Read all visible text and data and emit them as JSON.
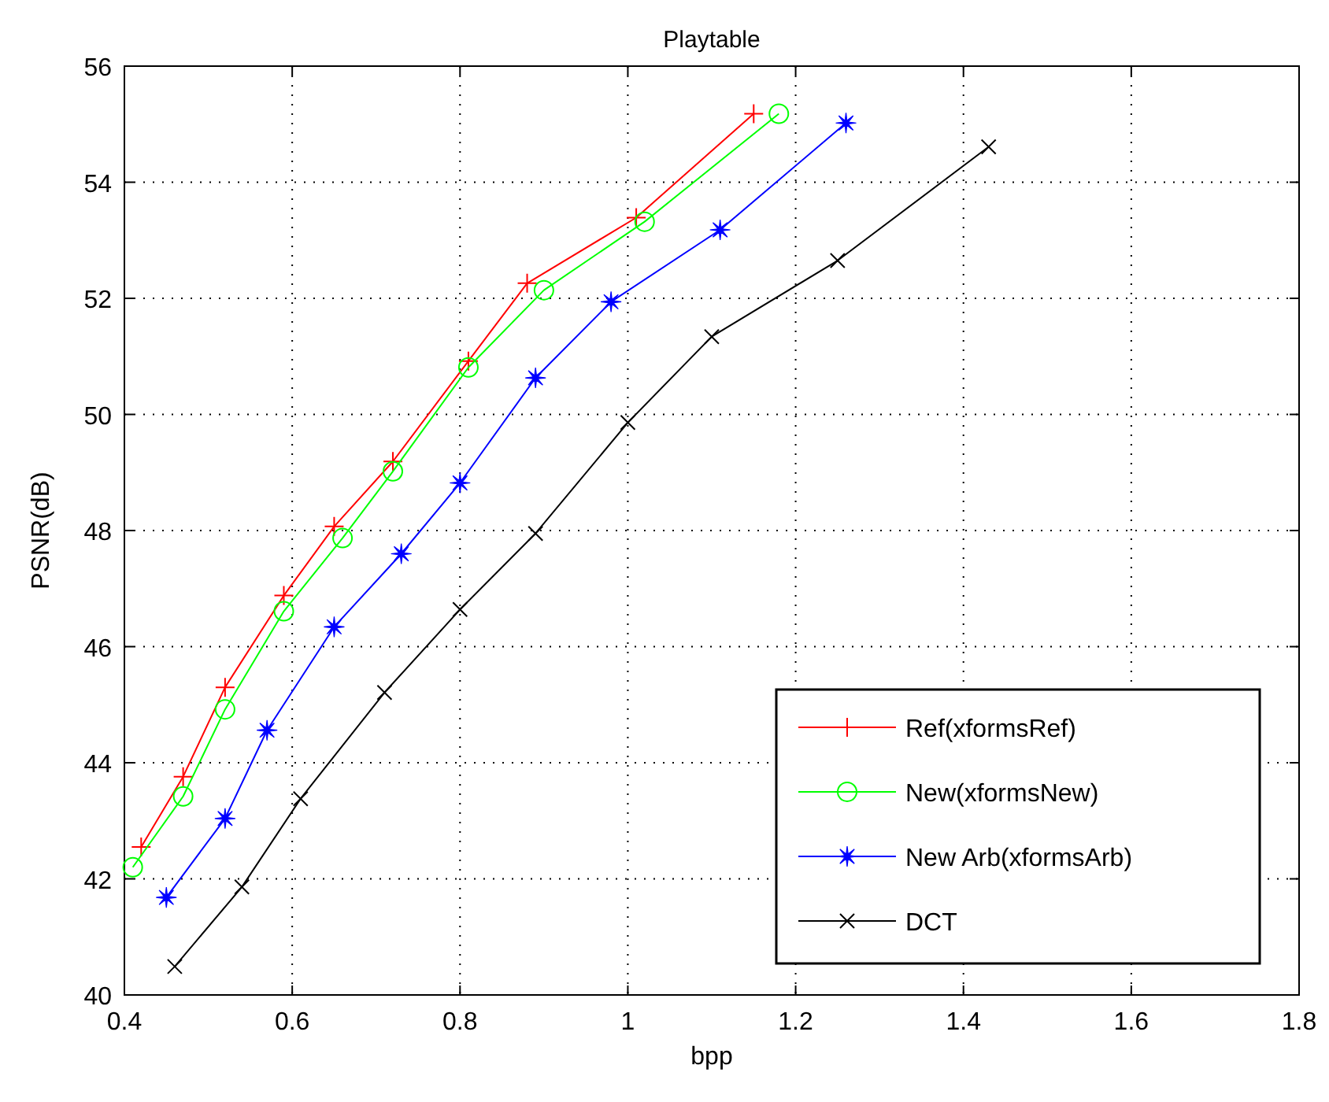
{
  "chart_data": {
    "type": "line",
    "title": "Playtable",
    "xlabel": "bpp",
    "ylabel": "PSNR(dB)",
    "xlim": [
      0.4,
      1.8
    ],
    "xticks": [
      0.4,
      0.6,
      0.8,
      1,
      1.2,
      1.4,
      1.6,
      1.8
    ],
    "ylim": [
      40,
      56
    ],
    "yticks": [
      40,
      42,
      44,
      46,
      48,
      50,
      52,
      54,
      56
    ],
    "grid": true,
    "legend": "bottom right",
    "line_style": "solid",
    "series": [
      {
        "name": "Ref(xformsRef)",
        "color": "#ff0000",
        "marker": "cross",
        "x": [
          0.42,
          0.47,
          0.52,
          0.59,
          0.65,
          0.72,
          0.81,
          0.88,
          1.01,
          1.15
        ],
        "values": [
          42.55,
          43.76,
          45.3,
          46.88,
          48.07,
          49.19,
          50.92,
          52.26,
          53.39,
          55.18
        ]
      },
      {
        "name": "New(xformsNew)",
        "color": "#00ff00",
        "marker": "circle",
        "x": [
          0.41,
          0.47,
          0.52,
          0.59,
          0.66,
          0.72,
          0.81,
          0.9,
          1.02,
          1.18
        ],
        "values": [
          42.2,
          43.42,
          44.92,
          46.61,
          47.87,
          49.02,
          50.81,
          52.14,
          53.32,
          55.18
        ]
      },
      {
        "name": "New Arb(xformsArb)",
        "color": "#0000ff",
        "marker": "star",
        "x": [
          0.45,
          0.52,
          0.57,
          0.65,
          0.73,
          0.8,
          0.89,
          0.98,
          1.11,
          1.26
        ],
        "values": [
          41.68,
          43.04,
          44.56,
          46.34,
          47.6,
          48.82,
          50.63,
          51.94,
          53.18,
          55.02
        ]
      },
      {
        "name": "DCT",
        "color": "#000000",
        "marker": "x",
        "x": [
          0.46,
          0.54,
          0.61,
          0.71,
          0.8,
          0.89,
          1,
          1.1,
          1.25,
          1.43
        ],
        "values": [
          40.49,
          41.86,
          43.38,
          45.21,
          46.64,
          47.95,
          49.86,
          51.34,
          52.65,
          54.61
        ]
      }
    ]
  }
}
